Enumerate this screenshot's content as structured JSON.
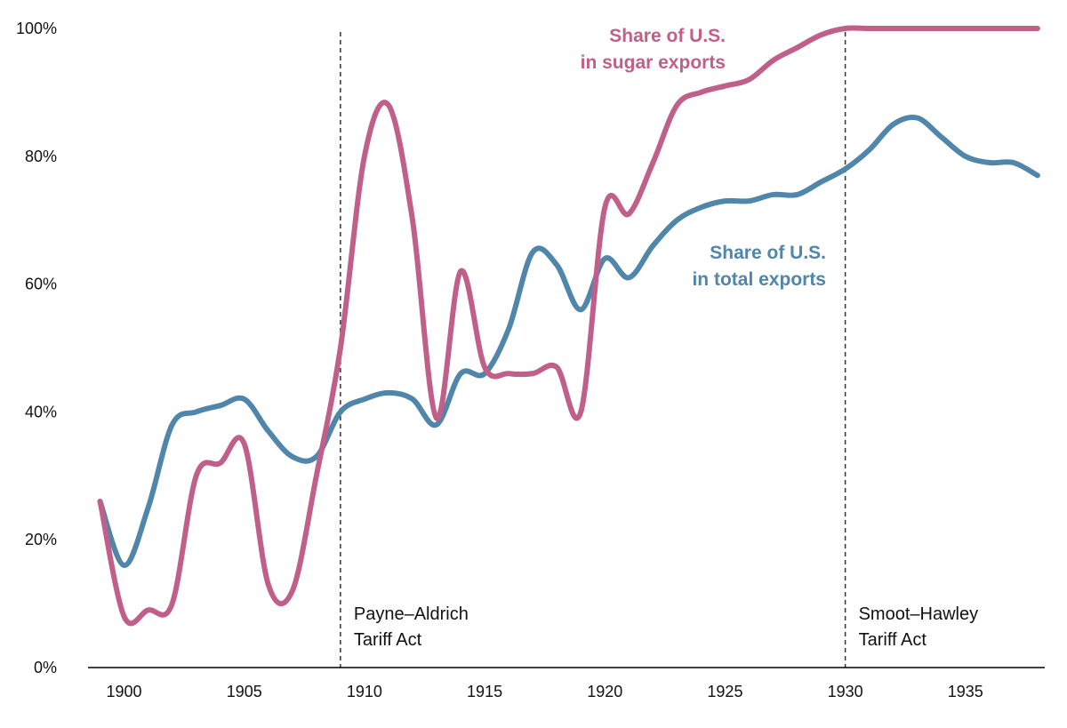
{
  "chart_data": {
    "type": "line",
    "x": [
      1899,
      1900,
      1901,
      1902,
      1903,
      1904,
      1905,
      1906,
      1907,
      1908,
      1909,
      1910,
      1911,
      1912,
      1913,
      1914,
      1915,
      1916,
      1917,
      1918,
      1919,
      1920,
      1921,
      1922,
      1923,
      1924,
      1925,
      1926,
      1927,
      1928,
      1929,
      1930,
      1931,
      1932,
      1933,
      1934,
      1935,
      1936,
      1937,
      1938
    ],
    "series": [
      {
        "name": "Share of U.S.\nin sugar exports",
        "label_lines": [
          "Share of U.S.",
          "in sugar exports"
        ],
        "color": "#c0608a",
        "values": [
          26,
          8,
          9,
          10,
          30,
          32,
          35,
          13,
          12,
          30,
          50,
          80,
          88,
          70,
          39,
          62,
          47,
          46,
          46,
          47,
          40,
          72,
          71,
          79,
          88,
          90,
          91,
          92,
          95,
          97,
          99,
          100,
          100,
          100,
          100,
          100,
          100,
          100,
          100,
          100
        ]
      },
      {
        "name": "Share of U.S.\nin total exports",
        "label_lines": [
          "Share of U.S.",
          "in total exports"
        ],
        "color": "#4f86aa",
        "values": [
          26,
          16,
          25,
          38,
          40,
          41,
          42,
          37,
          33,
          33,
          40,
          42,
          43,
          42,
          38,
          46,
          46,
          53,
          65,
          63,
          56,
          64,
          61,
          66,
          70,
          72,
          73,
          73,
          74,
          74,
          76,
          78,
          81,
          85,
          86,
          83,
          80,
          79,
          79,
          77
        ]
      }
    ],
    "xlim": [
      1898.5,
      1938.3
    ],
    "ylim": [
      0,
      100
    ],
    "xticks": [
      1900,
      1905,
      1910,
      1915,
      1920,
      1925,
      1930,
      1935
    ],
    "yticks": [
      0,
      20,
      40,
      60,
      80,
      100
    ],
    "y_tick_labels": [
      "0%",
      "20%",
      "40%",
      "60%",
      "80%",
      "100%"
    ],
    "annotations": [
      {
        "x": 1909,
        "lines": [
          "Payne–Aldrich",
          "Tariff Act"
        ]
      },
      {
        "x": 1930,
        "lines": [
          "Smoot–Hawley",
          "Tariff Act"
        ]
      }
    ],
    "grid": false,
    "title": "",
    "xlabel": "",
    "ylabel": ""
  }
}
